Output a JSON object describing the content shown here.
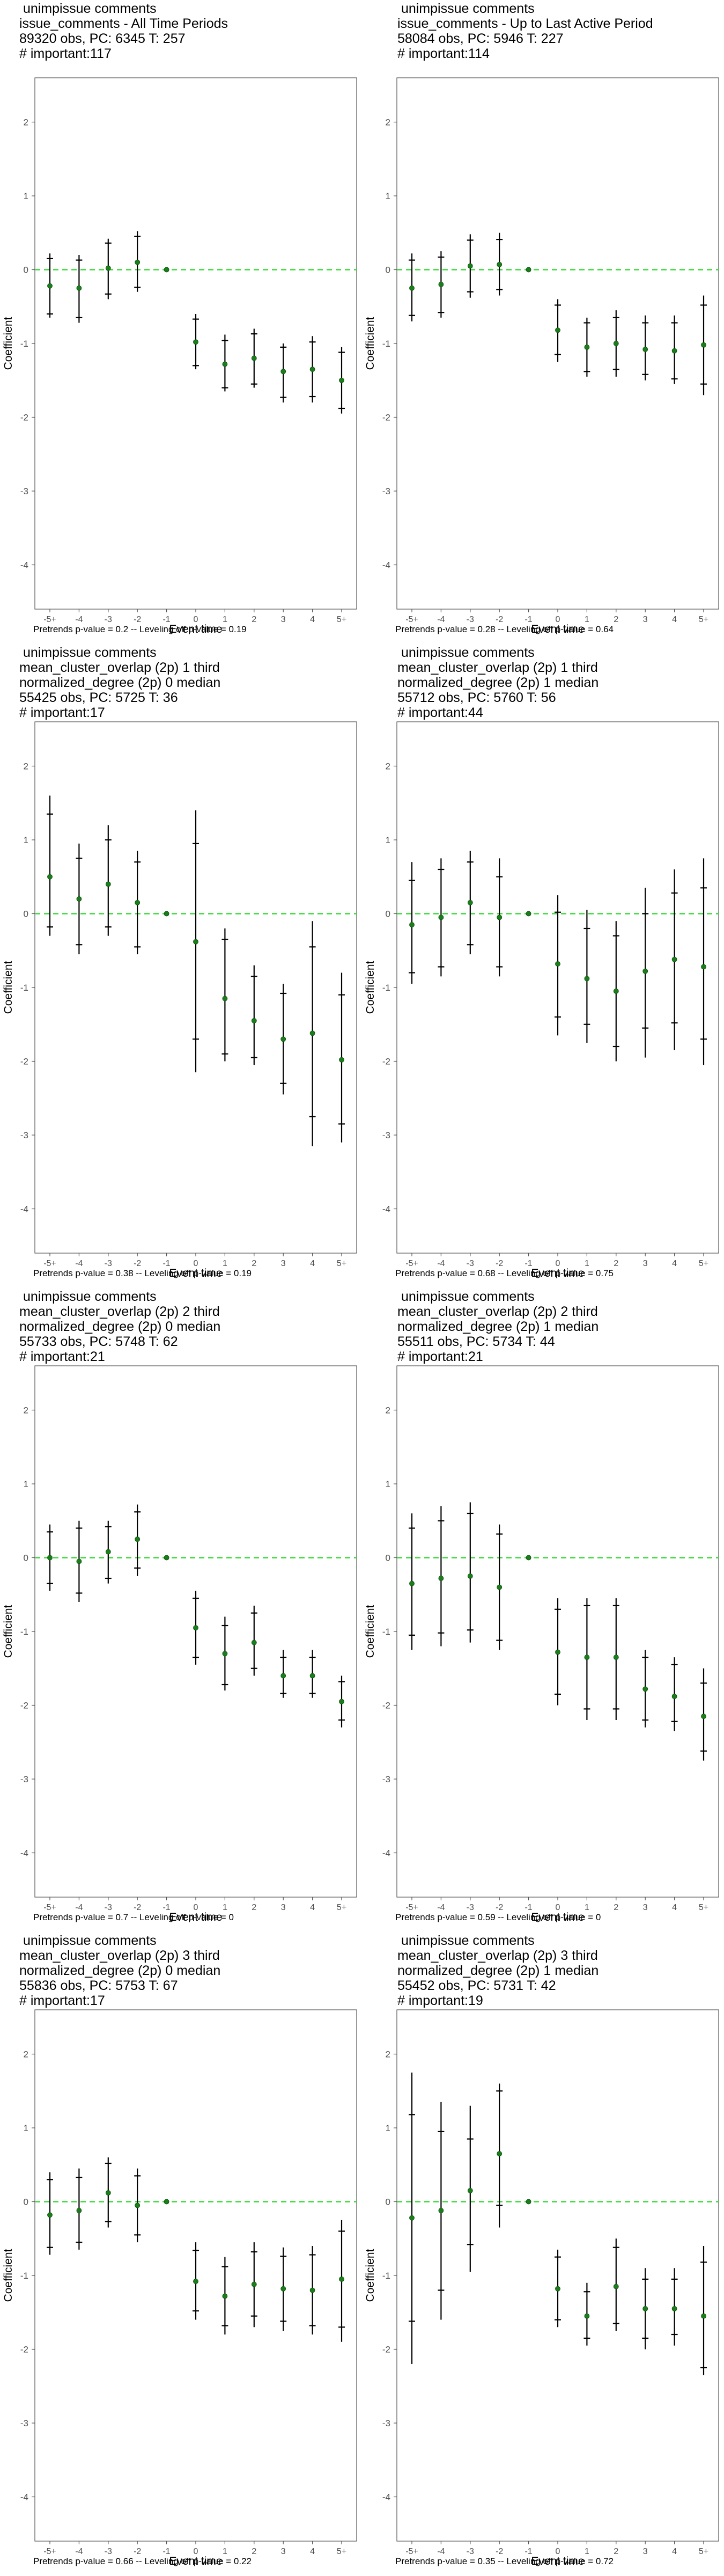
{
  "common": {
    "xlabel": "Event time",
    "ylabel": "Coefficient",
    "x_ticks": [
      "-5+",
      "-4",
      "-3",
      "-2",
      "-1",
      "0",
      "1",
      "2",
      "3",
      "4",
      "5+"
    ],
    "y_ticks": [
      2,
      1,
      0,
      -1,
      -2,
      -3,
      -4
    ],
    "ylim": [
      -4.6,
      2.6
    ],
    "point_color": "#1a7f1a",
    "zero_line_color": "#33dd33",
    "axis_color": "#555555"
  },
  "chart_data": [
    {
      "type": "scatter",
      "title_lines": [
        " unimpissue comments",
        "issue_comments - All Time Periods",
        "89320 obs, PC: 6345 T: 257",
        "# important:117"
      ],
      "footer": "Pretrends p-value = 0.2 -- Leveling off p-value = 0.19",
      "x": [
        "-5+",
        "-4",
        "-3",
        "-2",
        "-1",
        "0",
        "1",
        "2",
        "3",
        "4",
        "5+"
      ],
      "estimate": [
        -0.22,
        -0.25,
        0.02,
        0.1,
        0.0,
        -0.98,
        -1.28,
        -1.2,
        -1.38,
        -1.35,
        -1.5
      ],
      "ci95_low": [
        -0.65,
        -0.72,
        -0.4,
        -0.3,
        0.0,
        -1.35,
        -1.65,
        -1.6,
        -1.8,
        -1.8,
        -1.95
      ],
      "ci95_high": [
        0.22,
        0.2,
        0.42,
        0.52,
        0.0,
        -0.6,
        -0.88,
        -0.8,
        -1.0,
        -0.9,
        -1.05
      ],
      "ci90_low": [
        -0.6,
        -0.65,
        -0.33,
        -0.24,
        0.0,
        -1.3,
        -1.6,
        -1.55,
        -1.73,
        -1.72,
        -1.88
      ],
      "ci90_high": [
        0.15,
        0.13,
        0.36,
        0.45,
        0.0,
        -0.67,
        -0.96,
        -0.87,
        -1.05,
        -0.98,
        -1.12
      ]
    },
    {
      "type": "scatter",
      "title_lines": [
        " unimpissue comments",
        "issue_comments - Up to Last Active Period",
        "58084 obs, PC: 5946 T: 227",
        "# important:114"
      ],
      "footer": "Pretrends p-value = 0.28 -- Leveling off p-value = 0.64",
      "x": [
        "-5+",
        "-4",
        "-3",
        "-2",
        "-1",
        "0",
        "1",
        "2",
        "3",
        "4",
        "5+"
      ],
      "estimate": [
        -0.25,
        -0.2,
        0.05,
        0.07,
        0.0,
        -0.82,
        -1.05,
        -1.0,
        -1.08,
        -1.1,
        -1.02
      ],
      "ci95_low": [
        -0.7,
        -0.65,
        -0.38,
        -0.35,
        0.0,
        -1.25,
        -1.45,
        -1.45,
        -1.5,
        -1.55,
        -1.7
      ],
      "ci95_high": [
        0.22,
        0.25,
        0.48,
        0.5,
        0.0,
        -0.4,
        -0.65,
        -0.55,
        -0.62,
        -0.62,
        -0.35
      ],
      "ci90_low": [
        -0.62,
        -0.58,
        -0.3,
        -0.27,
        0.0,
        -1.15,
        -1.38,
        -1.35,
        -1.42,
        -1.48,
        -1.55
      ],
      "ci90_high": [
        0.13,
        0.17,
        0.4,
        0.41,
        0.0,
        -0.48,
        -0.72,
        -0.65,
        -0.72,
        -0.72,
        -0.48
      ]
    },
    {
      "type": "scatter",
      "title_lines": [
        " unimpissue comments",
        "mean_cluster_overlap (2p) 1 third",
        "normalized_degree (2p) 0 median",
        "55425 obs, PC: 5725 T: 36",
        "# important:17"
      ],
      "footer": "Pretrends p-value = 0.38 -- Leveling off p-value = 0.19",
      "x": [
        "-5+",
        "-4",
        "-3",
        "-2",
        "-1",
        "0",
        "1",
        "2",
        "3",
        "4",
        "5+"
      ],
      "estimate": [
        0.5,
        0.2,
        0.4,
        0.15,
        0.0,
        -0.38,
        -1.15,
        -1.45,
        -1.7,
        -1.62,
        -1.98
      ],
      "ci95_low": [
        -0.3,
        -0.55,
        -0.3,
        -0.55,
        0.0,
        -2.15,
        -2.0,
        -2.05,
        -2.45,
        -3.15,
        -3.1
      ],
      "ci95_high": [
        1.6,
        0.95,
        1.2,
        0.85,
        0.0,
        1.4,
        -0.2,
        -0.7,
        -0.95,
        -0.1,
        -0.8
      ],
      "ci90_low": [
        -0.18,
        -0.42,
        -0.18,
        -0.45,
        0.0,
        -1.7,
        -1.9,
        -1.95,
        -2.3,
        -2.75,
        -2.85
      ],
      "ci90_high": [
        1.35,
        0.75,
        1.0,
        0.7,
        0.0,
        0.95,
        -0.35,
        -0.85,
        -1.08,
        -0.45,
        -1.1
      ]
    },
    {
      "type": "scatter",
      "title_lines": [
        " unimpissue comments",
        "mean_cluster_overlap (2p) 1 third",
        "normalized_degree (2p) 1 median",
        "55712 obs, PC: 5760 T: 56",
        "# important:44"
      ],
      "footer": "Pretrends p-value = 0.68 -- Leveling off p-value = 0.75",
      "x": [
        "-5+",
        "-4",
        "-3",
        "-2",
        "-1",
        "0",
        "1",
        "2",
        "3",
        "4",
        "5+"
      ],
      "estimate": [
        -0.15,
        -0.05,
        0.15,
        -0.05,
        0.0,
        -0.68,
        -0.88,
        -1.05,
        -0.78,
        -0.62,
        -0.72
      ],
      "ci95_low": [
        -0.95,
        -0.85,
        -0.55,
        -0.85,
        0.0,
        -1.65,
        -1.75,
        -2.0,
        -1.95,
        -1.85,
        -2.05
      ],
      "ci95_high": [
        0.7,
        0.75,
        0.85,
        0.75,
        0.0,
        0.25,
        0.05,
        -0.1,
        0.35,
        0.6,
        0.75
      ],
      "ci90_low": [
        -0.8,
        -0.72,
        -0.42,
        -0.72,
        0.0,
        -1.4,
        -1.5,
        -1.8,
        -1.55,
        -1.48,
        -1.7
      ],
      "ci90_high": [
        0.45,
        0.6,
        0.7,
        0.5,
        0.0,
        0.02,
        -0.2,
        -0.3,
        0.0,
        0.28,
        0.35
      ]
    },
    {
      "type": "scatter",
      "title_lines": [
        " unimpissue comments",
        "mean_cluster_overlap (2p) 2 third",
        "normalized_degree (2p) 0 median",
        "55733 obs, PC: 5748 T: 62",
        "# important:21"
      ],
      "footer": "Pretrends p-value = 0.7 -- Leveling off p-value = 0",
      "x": [
        "-5+",
        "-4",
        "-3",
        "-2",
        "-1",
        "0",
        "1",
        "2",
        "3",
        "4",
        "5+"
      ],
      "estimate": [
        0.0,
        -0.05,
        0.08,
        0.25,
        0.0,
        -0.95,
        -1.3,
        -1.15,
        -1.6,
        -1.6,
        -1.95
      ],
      "ci95_low": [
        -0.45,
        -0.6,
        -0.35,
        -0.25,
        0.0,
        -1.45,
        -1.8,
        -1.6,
        -1.9,
        -1.9,
        -2.3
      ],
      "ci95_high": [
        0.45,
        0.5,
        0.5,
        0.72,
        0.0,
        -0.45,
        -0.8,
        -0.65,
        -1.25,
        -1.25,
        -1.6
      ],
      "ci90_low": [
        -0.35,
        -0.48,
        -0.28,
        -0.14,
        0.0,
        -1.35,
        -1.72,
        -1.5,
        -1.84,
        -1.84,
        -2.2
      ],
      "ci90_high": [
        0.35,
        0.4,
        0.42,
        0.62,
        0.0,
        -0.55,
        -0.92,
        -0.75,
        -1.35,
        -1.35,
        -1.68
      ]
    },
    {
      "type": "scatter",
      "title_lines": [
        " unimpissue comments",
        "mean_cluster_overlap (2p) 2 third",
        "normalized_degree (2p) 1 median",
        "55511 obs, PC: 5734 T: 44",
        "# important:21"
      ],
      "footer": "Pretrends p-value = 0.59 -- Leveling off p-value = 0",
      "x": [
        "-5+",
        "-4",
        "-3",
        "-2",
        "-1",
        "0",
        "1",
        "2",
        "3",
        "4",
        "5+"
      ],
      "estimate": [
        -0.35,
        -0.28,
        -0.25,
        -0.4,
        0.0,
        -1.28,
        -1.35,
        -1.35,
        -1.78,
        -1.88,
        -2.15
      ],
      "ci95_low": [
        -1.25,
        -1.2,
        -1.15,
        -1.25,
        0.0,
        -2.0,
        -2.2,
        -2.2,
        -2.3,
        -2.35,
        -2.75
      ],
      "ci95_high": [
        0.6,
        0.7,
        0.75,
        0.45,
        0.0,
        -0.55,
        -0.55,
        -0.55,
        -1.25,
        -1.35,
        -1.5
      ],
      "ci90_low": [
        -1.05,
        -1.02,
        -0.98,
        -1.12,
        0.0,
        -1.85,
        -2.05,
        -2.05,
        -2.2,
        -2.22,
        -2.62
      ],
      "ci90_high": [
        0.4,
        0.5,
        0.6,
        0.32,
        0.0,
        -0.7,
        -0.65,
        -0.65,
        -1.35,
        -1.45,
        -1.7
      ]
    },
    {
      "type": "scatter",
      "title_lines": [
        " unimpissue comments",
        "mean_cluster_overlap (2p) 3 third",
        "normalized_degree (2p) 0 median",
        "55836 obs, PC: 5753 T: 67",
        "# important:17"
      ],
      "footer": "Pretrends p-value = 0.66 -- Leveling off p-value = 0.22",
      "x": [
        "-5+",
        "-4",
        "-3",
        "-2",
        "-1",
        "0",
        "1",
        "2",
        "3",
        "4",
        "5+"
      ],
      "estimate": [
        -0.18,
        -0.12,
        0.12,
        -0.05,
        0.0,
        -1.08,
        -1.28,
        -1.12,
        -1.18,
        -1.2,
        -1.05
      ],
      "ci95_low": [
        -0.72,
        -0.65,
        -0.35,
        -0.55,
        0.0,
        -1.6,
        -1.8,
        -1.7,
        -1.75,
        -1.8,
        -1.9
      ],
      "ci95_high": [
        0.4,
        0.45,
        0.6,
        0.45,
        0.0,
        -0.55,
        -0.75,
        -0.55,
        -0.62,
        -0.6,
        -0.25
      ],
      "ci90_low": [
        -0.62,
        -0.55,
        -0.27,
        -0.45,
        0.0,
        -1.48,
        -1.68,
        -1.55,
        -1.62,
        -1.68,
        -1.7
      ],
      "ci90_high": [
        0.3,
        0.33,
        0.52,
        0.35,
        0.0,
        -0.66,
        -0.88,
        -0.68,
        -0.74,
        -0.72,
        -0.4
      ]
    },
    {
      "type": "scatter",
      "title_lines": [
        " unimpissue comments",
        "mean_cluster_overlap (2p) 3 third",
        "normalized_degree (2p) 1 median",
        "55452 obs, PC: 5731 T: 42",
        "# important:19"
      ],
      "footer": "Pretrends p-value = 0.35 -- Leveling off p-value = 0.72",
      "x": [
        "-5+",
        "-4",
        "-3",
        "-2",
        "-1",
        "0",
        "1",
        "2",
        "3",
        "4",
        "5+"
      ],
      "estimate": [
        -0.22,
        -0.12,
        0.15,
        0.65,
        0.0,
        -1.18,
        -1.55,
        -1.15,
        -1.45,
        -1.45,
        -1.55
      ],
      "ci95_low": [
        -2.2,
        -1.6,
        -0.95,
        -0.35,
        0.0,
        -1.7,
        -1.95,
        -1.75,
        -2.0,
        -1.95,
        -2.35
      ],
      "ci95_high": [
        1.75,
        1.35,
        1.3,
        1.6,
        0.0,
        -0.65,
        -1.1,
        -0.5,
        -0.9,
        -0.9,
        -0.6
      ],
      "ci90_low": [
        -1.62,
        -1.2,
        -0.58,
        -0.05,
        0.0,
        -1.6,
        -1.85,
        -1.65,
        -1.85,
        -1.8,
        -2.25
      ],
      "ci90_high": [
        1.18,
        0.95,
        0.85,
        1.5,
        0.0,
        -0.75,
        -1.22,
        -0.62,
        -1.05,
        -1.05,
        -0.82
      ]
    }
  ]
}
